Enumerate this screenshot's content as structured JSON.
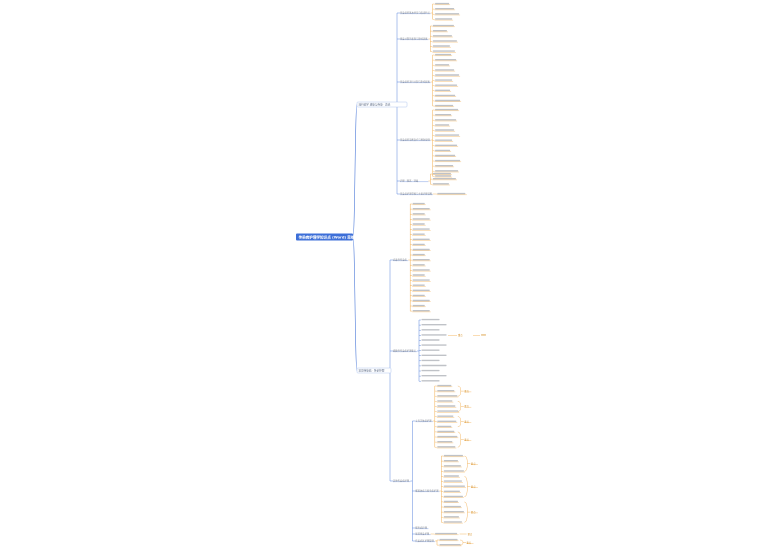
{
  "diagram": {
    "type": "mindmap",
    "root": "传染病护理学知识点 (Word) 思维",
    "colors": {
      "root_bg": "#3d6fd8",
      "blue_line": "#4a78d8",
      "orange_line": "#f0a640",
      "l1_border": "#9cb8ea",
      "tag_border": "#f2b866"
    },
    "branch_a": {
      "label": "流行病学 感染与传染 · 总论",
      "children": [
        {
          "label": "传染病的基本特征与临床特点",
          "leaves": 4
        },
        {
          "label": "感染过程的表现与影响因素",
          "leaves": 6
        },
        {
          "label": "传染病的流行过程与影响因素",
          "leaves": 11
        },
        {
          "label": "传染病的诊断治疗与预防原则",
          "leaves": 14
        },
        {
          "label": "护理 · 隔离 · 消毒",
          "leaves": 3
        },
        {
          "label": "传染病护理常规与主要护理诊断",
          "leaves": 1
        }
      ]
    },
    "branch_b": {
      "label": "常见传染病 · 各论护理",
      "children": [
        {
          "label": "病毒性传染病",
          "leaves": 22
        },
        {
          "label": "细菌性传染病护理要点",
          "leaves": 13,
          "tag": "重点"
        },
        {
          "label": "其他传染病护理",
          "groups": [
            {
              "label": "立克次体病护理",
              "leaves": 13,
              "tags": [
                "要点",
                "要点",
                "要点",
                "要点"
              ]
            },
            {
              "label": "螺旋体病与原虫病护理",
              "leaves": 14,
              "tags": [
                "要点",
                "要点",
                "要点"
              ]
            },
            {
              "label": "蠕虫病护理",
              "leaves": 0
            },
            {
              "label": "医院感染护理",
              "leaves": 1,
              "tag": "要点"
            },
            {
              "label": "传染病区护理管理",
              "leaves": 2,
              "tags": [
                "要点"
              ]
            }
          ]
        }
      ]
    }
  }
}
